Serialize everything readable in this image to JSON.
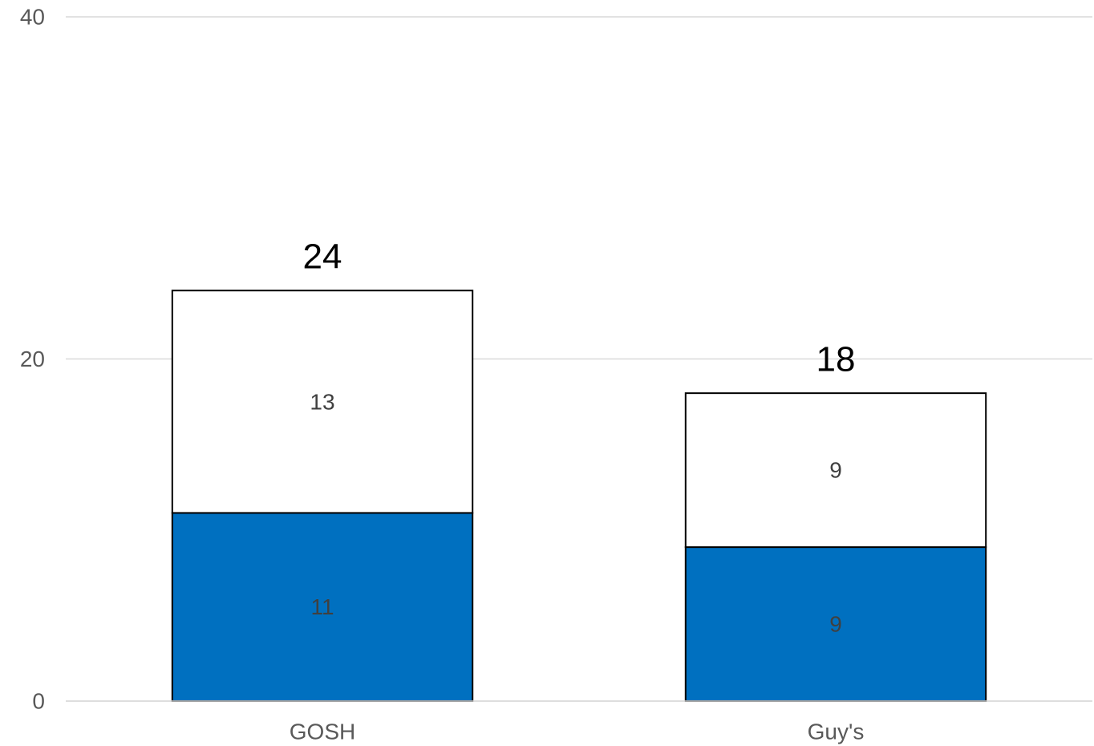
{
  "chart_data": {
    "type": "bar",
    "stacked": true,
    "categories": [
      "GOSH",
      "Guy's"
    ],
    "series": [
      {
        "values": [
          11,
          9
        ],
        "color": "#0070C0"
      },
      {
        "values": [
          13,
          9
        ],
        "color": "#FFFFFF"
      }
    ],
    "totals": [
      24,
      18
    ],
    "ylim": [
      0,
      40
    ],
    "yticks": [
      0,
      20,
      40
    ],
    "grid": true,
    "legend": "none",
    "title": "",
    "xlabel": "",
    "ylabel": "",
    "colors": {
      "grid": "#D9D9D9",
      "tick_text": "#595959",
      "segment_text": "#404040",
      "bar_border": "#000000"
    }
  }
}
